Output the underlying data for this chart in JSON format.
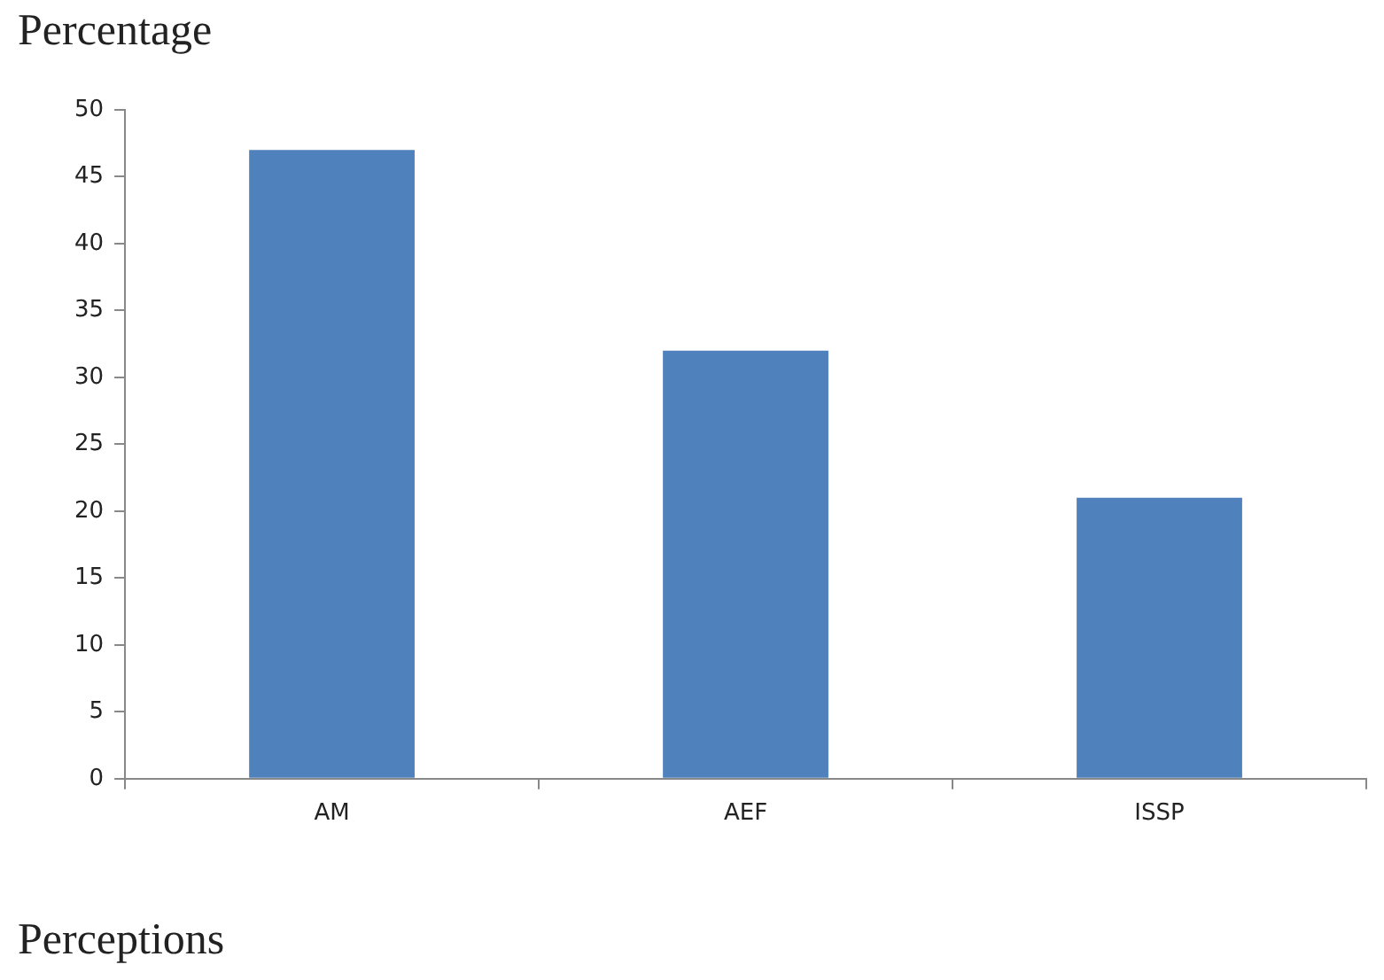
{
  "chart_data": {
    "type": "bar",
    "xlabel": "Perceptions",
    "ylabel": "Percentage",
    "categories": [
      "AM",
      "AEF",
      "ISSP"
    ],
    "values": [
      47,
      32,
      21
    ],
    "color": "#4f81bd",
    "ylim": [
      0,
      50
    ],
    "yticks": [
      0,
      5,
      10,
      15,
      20,
      25,
      30,
      35,
      40,
      45,
      50
    ]
  }
}
